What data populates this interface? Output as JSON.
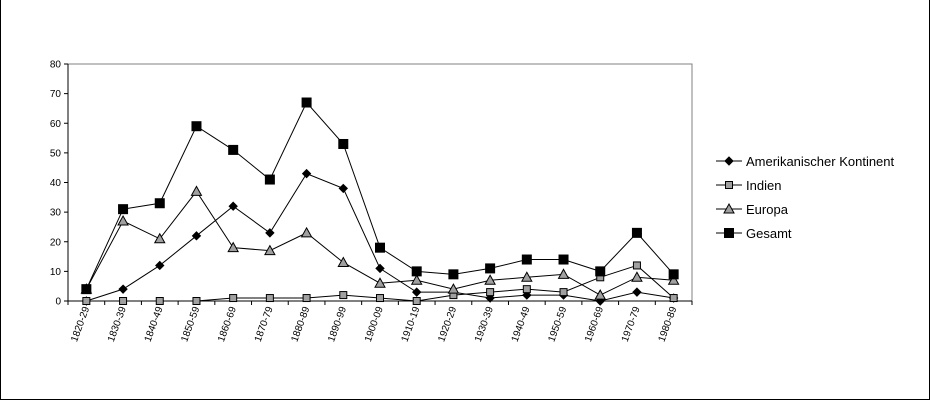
{
  "chart_data": {
    "type": "line",
    "title": "",
    "xlabel": "",
    "ylabel": "",
    "ylim": [
      0,
      80
    ],
    "yticks": [
      0,
      10,
      20,
      30,
      40,
      50,
      60,
      70,
      80
    ],
    "grid": false,
    "legend_position": "right",
    "categories": [
      "1820-29",
      "1830-39",
      "1840-49",
      "1850-59",
      "1860-69",
      "1870-79",
      "1880-89",
      "1890-99",
      "1900-09",
      "1910-19",
      "1920-29",
      "1930-39",
      "1940-49",
      "1950-59",
      "1960-69",
      "1970-79",
      "1980-89"
    ],
    "series": [
      {
        "name": "Amerikanischer Kontinent",
        "marker": "diamond",
        "marker_fill": "#000000",
        "values": [
          0,
          4,
          12,
          22,
          32,
          23,
          43,
          38,
          11,
          3,
          3,
          1,
          2,
          2,
          0,
          3,
          1
        ]
      },
      {
        "name": "Indien",
        "marker": "square",
        "marker_fill": "#a0a0a0",
        "values": [
          0,
          0,
          0,
          0,
          1,
          1,
          1,
          2,
          1,
          0,
          2,
          3,
          4,
          3,
          8,
          12,
          1
        ]
      },
      {
        "name": "Europa",
        "marker": "triangle",
        "marker_fill": "#a0a0a0",
        "values": [
          4,
          27,
          21,
          37,
          18,
          17,
          23,
          13,
          6,
          7,
          4,
          7,
          8,
          9,
          2,
          8,
          7
        ]
      },
      {
        "name": "Gesamt",
        "marker": "square-large",
        "marker_fill": "#000000",
        "values": [
          4,
          31,
          33,
          59,
          51,
          41,
          67,
          53,
          18,
          10,
          9,
          11,
          14,
          14,
          10,
          23,
          9
        ]
      }
    ]
  }
}
